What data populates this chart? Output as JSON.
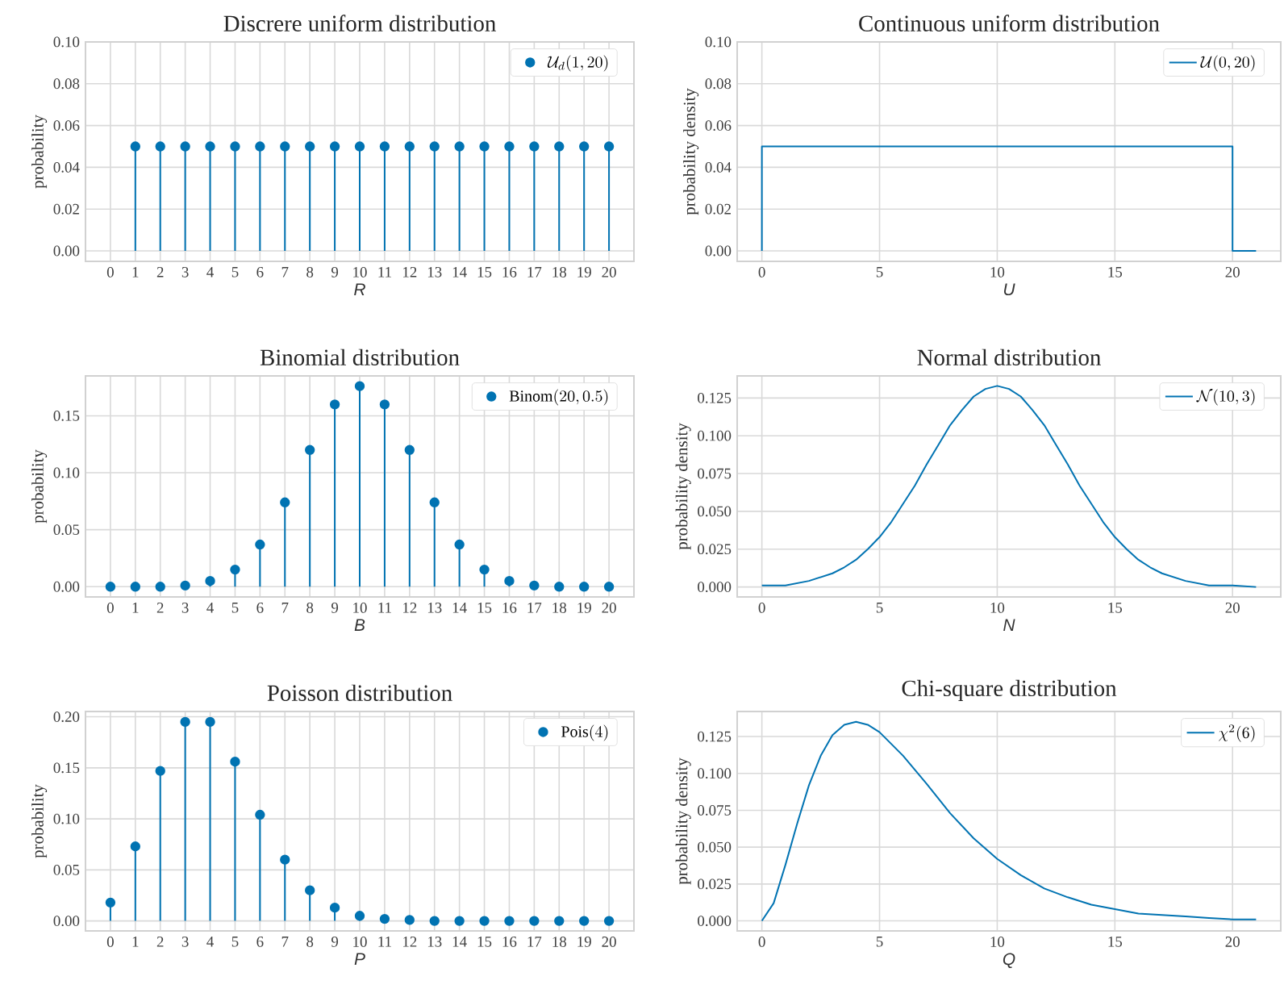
{
  "chart_data": [
    {
      "type": "lollipop",
      "title": "Discrere uniform distribution",
      "xlabel": "R",
      "ylabel": "probability",
      "categories": [
        "0",
        "1",
        "2",
        "3",
        "4",
        "5",
        "6",
        "7",
        "8",
        "9",
        "10",
        "11",
        "12",
        "13",
        "14",
        "15",
        "16",
        "17",
        "18",
        "19",
        "20"
      ],
      "series": [
        {
          "name": "\\mathcal{U}_d(1, 20)",
          "color": "#0173b2",
          "values": [
            null,
            0.05,
            0.05,
            0.05,
            0.05,
            0.05,
            0.05,
            0.05,
            0.05,
            0.05,
            0.05,
            0.05,
            0.05,
            0.05,
            0.05,
            0.05,
            0.05,
            0.05,
            0.05,
            0.05,
            0.05
          ]
        }
      ],
      "ylim": [
        -0.005,
        0.1
      ],
      "yticks": [
        {
          "value": 0,
          "label": "0.00"
        },
        {
          "value": 0.02,
          "label": "0.02"
        },
        {
          "value": 0.04,
          "label": "0.04"
        },
        {
          "value": 0.06,
          "label": "0.06"
        },
        {
          "value": 0.08,
          "label": "0.08"
        },
        {
          "value": 0.1,
          "label": "0.10"
        }
      ],
      "grid": true,
      "legend": "top right",
      "marker": "circle"
    },
    {
      "type": "line",
      "title": "Continuous uniform distribution",
      "xlabel": "U",
      "ylabel": "probability density",
      "series": [
        {
          "name": "\\mathcal{U}(0, 20)",
          "color": "#0173b2",
          "x": [
            0,
            0,
            20,
            20,
            21
          ],
          "values": [
            0,
            0.05,
            0.05,
            0,
            0
          ]
        }
      ],
      "xlim": [
        -1.05,
        22.05
      ],
      "xticks": [
        0,
        5,
        10,
        15,
        20
      ],
      "ylim": [
        -0.005,
        0.1
      ],
      "yticks": [
        {
          "value": 0,
          "label": "0.00"
        },
        {
          "value": 0.02,
          "label": "0.02"
        },
        {
          "value": 0.04,
          "label": "0.04"
        },
        {
          "value": 0.06,
          "label": "0.06"
        },
        {
          "value": 0.08,
          "label": "0.08"
        },
        {
          "value": 0.1,
          "label": "0.10"
        }
      ],
      "grid": true,
      "legend": "top right"
    },
    {
      "type": "lollipop",
      "title": "Binomial distribution",
      "xlabel": "B",
      "ylabel": "probability",
      "categories": [
        "0",
        "1",
        "2",
        "3",
        "4",
        "5",
        "6",
        "7",
        "8",
        "9",
        "10",
        "11",
        "12",
        "13",
        "14",
        "15",
        "16",
        "17",
        "18",
        "19",
        "20"
      ],
      "series": [
        {
          "name": "\\mathrm{Binom}(20, 0.5)",
          "color": "#0173b2",
          "values": [
            0.0,
            0.0,
            0.0,
            0.001,
            0.005,
            0.015,
            0.037,
            0.074,
            0.12,
            0.16,
            0.176,
            0.16,
            0.12,
            0.074,
            0.037,
            0.015,
            0.005,
            0.001,
            0.0,
            0.0,
            0.0
          ]
        }
      ],
      "ylim": [
        -0.009,
        0.185
      ],
      "yticks": [
        {
          "value": 0,
          "label": "0.00"
        },
        {
          "value": 0.05,
          "label": "0.05"
        },
        {
          "value": 0.1,
          "label": "0.10"
        },
        {
          "value": 0.15,
          "label": "0.15"
        }
      ],
      "grid": true,
      "legend": "top right",
      "marker": "circle"
    },
    {
      "type": "line",
      "title": "Normal distribution",
      "xlabel": "N",
      "ylabel": "probability density",
      "series": [
        {
          "name": "\\mathcal{N}(10, 3)",
          "color": "#0173b2",
          "x": [
            0,
            1,
            2,
            3,
            3.5,
            4,
            4.5,
            5,
            5.5,
            6,
            6.5,
            7,
            7.5,
            8,
            8.5,
            9,
            9.5,
            10,
            10.5,
            11,
            11.5,
            12,
            12.5,
            13,
            13.5,
            14,
            14.5,
            15,
            15.5,
            16,
            16.5,
            17,
            18,
            19,
            20,
            21
          ],
          "values": [
            0.001,
            0.001,
            0.004,
            0.009,
            0.013,
            0.018,
            0.025,
            0.033,
            0.043,
            0.055,
            0.067,
            0.081,
            0.094,
            0.107,
            0.117,
            0.126,
            0.131,
            0.133,
            0.131,
            0.126,
            0.117,
            0.107,
            0.094,
            0.081,
            0.067,
            0.055,
            0.043,
            0.033,
            0.025,
            0.018,
            0.013,
            0.009,
            0.004,
            0.001,
            0.001,
            0.0
          ]
        }
      ],
      "xlim": [
        -1.05,
        22.05
      ],
      "xticks": [
        0,
        5,
        10,
        15,
        20
      ],
      "ylim": [
        -0.0066,
        0.1396
      ],
      "yticks": [
        {
          "value": 0,
          "label": "0.000"
        },
        {
          "value": 0.025,
          "label": "0.025"
        },
        {
          "value": 0.05,
          "label": "0.050"
        },
        {
          "value": 0.075,
          "label": "0.075"
        },
        {
          "value": 0.1,
          "label": "0.100"
        },
        {
          "value": 0.125,
          "label": "0.125"
        }
      ],
      "grid": true,
      "legend": "top right"
    },
    {
      "type": "lollipop",
      "title": "Poisson distribution",
      "xlabel": "P",
      "ylabel": "probability",
      "categories": [
        "0",
        "1",
        "2",
        "3",
        "4",
        "5",
        "6",
        "7",
        "8",
        "9",
        "10",
        "11",
        "12",
        "13",
        "14",
        "15",
        "16",
        "17",
        "18",
        "19",
        "20"
      ],
      "series": [
        {
          "name": "\\mathrm{Pois}(4)",
          "color": "#0173b2",
          "values": [
            0.018,
            0.073,
            0.147,
            0.195,
            0.195,
            0.156,
            0.104,
            0.06,
            0.03,
            0.013,
            0.005,
            0.002,
            0.001,
            0.0,
            0.0,
            0.0,
            0.0,
            0.0,
            0.0,
            0.0,
            0.0
          ]
        }
      ],
      "ylim": [
        -0.0098,
        0.2052
      ],
      "yticks": [
        {
          "value": 0,
          "label": "0.00"
        },
        {
          "value": 0.05,
          "label": "0.05"
        },
        {
          "value": 0.1,
          "label": "0.10"
        },
        {
          "value": 0.15,
          "label": "0.15"
        },
        {
          "value": 0.2,
          "label": "0.20"
        }
      ],
      "grid": true,
      "legend": "top right",
      "marker": "circle"
    },
    {
      "type": "line",
      "title": "Chi-square distribution",
      "xlabel": "Q",
      "ylabel": "probability density",
      "series": [
        {
          "name": "\\chi^2(6)",
          "color": "#0173b2",
          "x": [
            0,
            0.5,
            1,
            1.5,
            2,
            2.5,
            3,
            3.5,
            4,
            4.5,
            5,
            6,
            7,
            8,
            9,
            10,
            11,
            12,
            13,
            14,
            15,
            16,
            17,
            18,
            19,
            20,
            21
          ],
          "values": [
            0,
            0.012,
            0.038,
            0.066,
            0.092,
            0.112,
            0.126,
            0.133,
            0.135,
            0.133,
            0.128,
            0.112,
            0.093,
            0.073,
            0.056,
            0.042,
            0.031,
            0.022,
            0.016,
            0.011,
            0.008,
            0.005,
            0.004,
            0.003,
            0.002,
            0.001,
            0.001
          ]
        }
      ],
      "xlim": [
        -1.05,
        22.05
      ],
      "xticks": [
        0,
        5,
        10,
        15,
        20
      ],
      "ylim": [
        -0.0068,
        0.142
      ],
      "yticks": [
        {
          "value": 0,
          "label": "0.000"
        },
        {
          "value": 0.025,
          "label": "0.025"
        },
        {
          "value": 0.05,
          "label": "0.050"
        },
        {
          "value": 0.075,
          "label": "0.075"
        },
        {
          "value": 0.1,
          "label": "0.100"
        },
        {
          "value": 0.125,
          "label": "0.125"
        }
      ],
      "grid": true,
      "legend": "top right"
    }
  ]
}
